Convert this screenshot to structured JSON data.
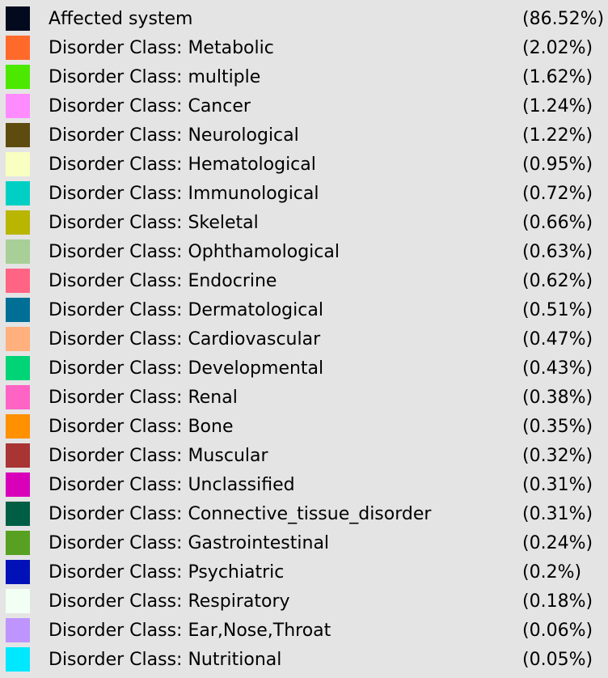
{
  "legend": {
    "items": [
      {
        "label": "Affected system",
        "percent": "(86.52%)",
        "color": "#040a1e"
      },
      {
        "label": "Disorder Class: Metabolic",
        "percent": "(2.02%)",
        "color": "#ff6a2b"
      },
      {
        "label": "Disorder Class: multiple",
        "percent": "(1.62%)",
        "color": "#4de800"
      },
      {
        "label": "Disorder Class: Cancer",
        "percent": "(1.24%)",
        "color": "#ff8cff"
      },
      {
        "label": "Disorder Class: Neurological",
        "percent": "(1.22%)",
        "color": "#5e4b0f"
      },
      {
        "label": "Disorder Class: Hematological",
        "percent": "(0.95%)",
        "color": "#f9ffc0"
      },
      {
        "label": "Disorder Class: Immunological",
        "percent": "(0.72%)",
        "color": "#00d0c4"
      },
      {
        "label": "Disorder Class: Skeletal",
        "percent": "(0.66%)",
        "color": "#b8b600"
      },
      {
        "label": "Disorder Class: Ophthamological",
        "percent": "(0.63%)",
        "color": "#a7cf97"
      },
      {
        "label": "Disorder Class: Endocrine",
        "percent": "(0.62%)",
        "color": "#ff6485"
      },
      {
        "label": "Disorder Class: Dermatological",
        "percent": "(0.51%)",
        "color": "#006f96"
      },
      {
        "label": "Disorder Class: Cardiovascular",
        "percent": "(0.47%)",
        "color": "#ffb07d"
      },
      {
        "label": "Disorder Class: Developmental",
        "percent": "(0.43%)",
        "color": "#00d477"
      },
      {
        "label": "Disorder Class: Renal",
        "percent": "(0.38%)",
        "color": "#ff64c5"
      },
      {
        "label": "Disorder Class: Bone",
        "percent": "(0.35%)",
        "color": "#ff9000"
      },
      {
        "label": "Disorder Class: Muscular",
        "percent": "(0.32%)",
        "color": "#a83434"
      },
      {
        "label": "Disorder Class: Unclassified",
        "percent": "(0.31%)",
        "color": "#d800b9"
      },
      {
        "label": "Disorder Class: Connective_tissue_disorder",
        "percent": "(0.31%)",
        "color": "#005e44"
      },
      {
        "label": "Disorder Class: Gastrointestinal",
        "percent": "(0.24%)",
        "color": "#58a021"
      },
      {
        "label": "Disorder Class: Psychiatric",
        "percent": "(0.2%)",
        "color": "#0011b8"
      },
      {
        "label": "Disorder Class: Respiratory",
        "percent": "(0.18%)",
        "color": "#f2fff4"
      },
      {
        "label": "Disorder Class: Ear,Nose,Throat",
        "percent": "(0.06%)",
        "color": "#be95ff"
      },
      {
        "label": "Disorder Class: Nutritional",
        "percent": "(0.05%)",
        "color": "#00e8ff"
      }
    ]
  }
}
